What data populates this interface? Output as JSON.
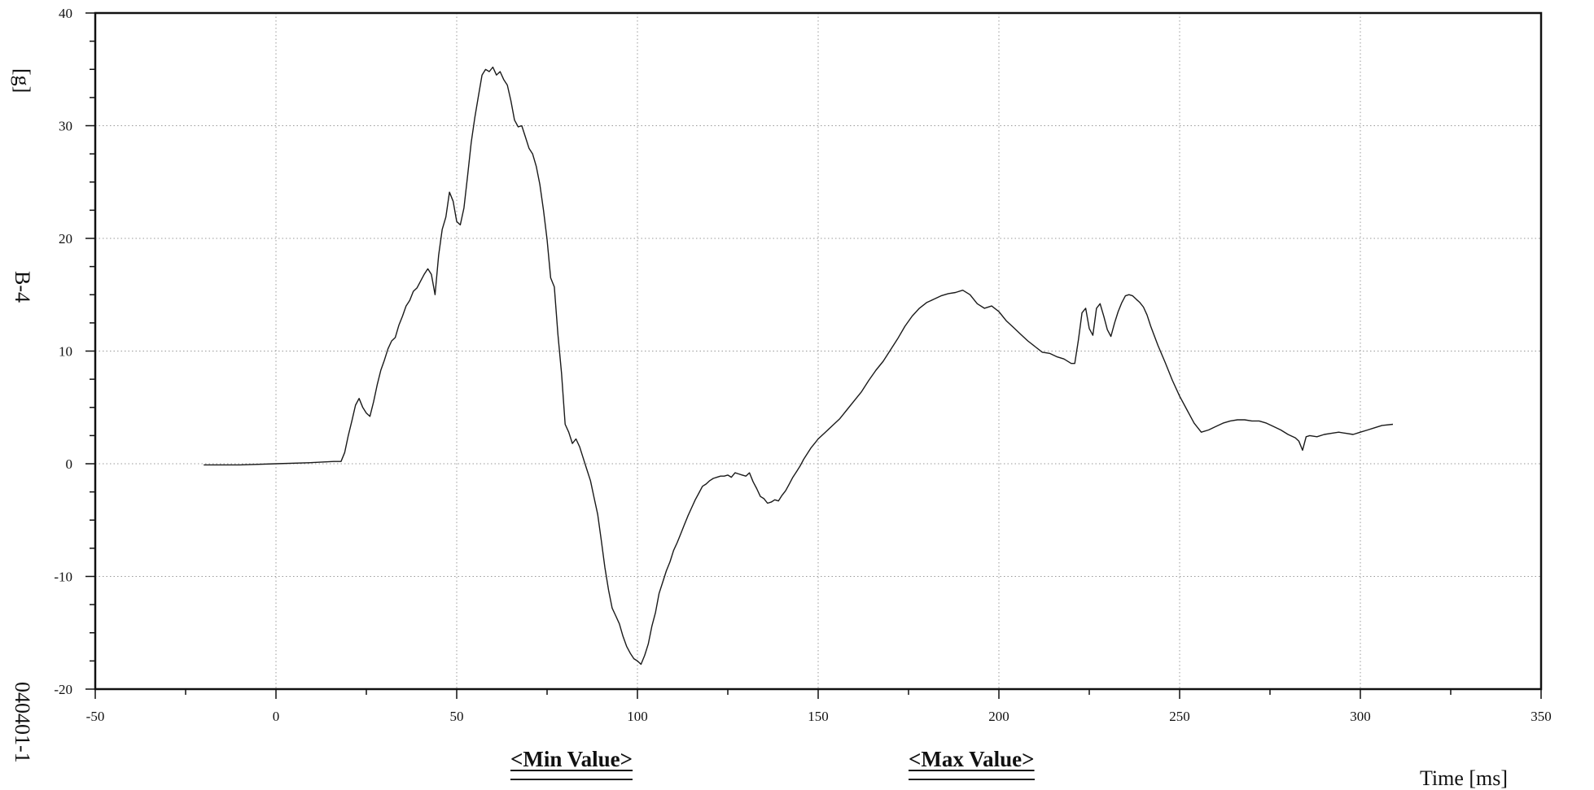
{
  "chart_data": {
    "type": "line",
    "title": "",
    "xlabel": "Time [ms]",
    "ylabel": "[g]",
    "xlim": [
      -50,
      350
    ],
    "ylim": [
      -20,
      40
    ],
    "x_ticks": [
      -50,
      0,
      50,
      100,
      150,
      200,
      250,
      300,
      350
    ],
    "y_ticks": [
      -20,
      -10,
      0,
      10,
      20,
      30,
      40
    ],
    "grid": true,
    "series": [
      {
        "name": "",
        "x": [
          -20,
          -10,
          0,
          10,
          16,
          18,
          19,
          20,
          21,
          22,
          23,
          24,
          25,
          26,
          27,
          28,
          29,
          30,
          31,
          32,
          33,
          34,
          35,
          36,
          37,
          38,
          39,
          40,
          41,
          42,
          43,
          44,
          45,
          46,
          47,
          48,
          49,
          50,
          51,
          52,
          53,
          54,
          55,
          56,
          57,
          58,
          59,
          60,
          61,
          62,
          63,
          64,
          65,
          66,
          67,
          68,
          69,
          70,
          71,
          72,
          73,
          74,
          75,
          76,
          77,
          78,
          79,
          80,
          81,
          82,
          83,
          84,
          85,
          86,
          87,
          88,
          89,
          90,
          91,
          92,
          93,
          94,
          95,
          96,
          97,
          98,
          99,
          100,
          101,
          102,
          103,
          104,
          105,
          106,
          107,
          108,
          109,
          110,
          111,
          112,
          113,
          114,
          115,
          116,
          117,
          118,
          119,
          120,
          121,
          122,
          123,
          124,
          125,
          126,
          127,
          128,
          129,
          130,
          131,
          132,
          133,
          134,
          135,
          136,
          137,
          138,
          139,
          140,
          141,
          142,
          143,
          144,
          145,
          146,
          147,
          148,
          149,
          150,
          152,
          154,
          156,
          158,
          160,
          162,
          164,
          166,
          168,
          170,
          172,
          174,
          176,
          178,
          180,
          182,
          184,
          186,
          188,
          190,
          192,
          194,
          196,
          198,
          200,
          202,
          204,
          206,
          208,
          210,
          212,
          214,
          216,
          218,
          220,
          221,
          222,
          223,
          224,
          225,
          226,
          227,
          228,
          229,
          230,
          231,
          232,
          233,
          234,
          235,
          236,
          237,
          238,
          239,
          240,
          241,
          242,
          244,
          246,
          248,
          250,
          252,
          254,
          256,
          258,
          260,
          262,
          264,
          266,
          268,
          270,
          272,
          274,
          276,
          278,
          280,
          282,
          283,
          284,
          285,
          286,
          288,
          290,
          292,
          294,
          296,
          298,
          300,
          302,
          304,
          306,
          309
        ],
        "values": [
          -0.1,
          -0.1,
          0,
          0.1,
          0.2,
          0.2,
          1.0,
          2.5,
          3.8,
          5.2,
          5.8,
          5.0,
          4.5,
          4.2,
          5.5,
          7.0,
          8.3,
          9.2,
          10.2,
          10.9,
          11.2,
          12.3,
          13.1,
          14.0,
          14.5,
          15.3,
          15.6,
          16.2,
          16.8,
          17.3,
          16.8,
          15.0,
          18.5,
          20.8,
          21.9,
          24.1,
          23.3,
          21.5,
          21.2,
          22.7,
          25.5,
          28.5,
          30.7,
          32.6,
          34.5,
          35.0,
          34.8,
          35.2,
          34.5,
          34.8,
          34.1,
          33.6,
          32.2,
          30.5,
          29.9,
          30.0,
          29.0,
          28.0,
          27.5,
          26.4,
          24.8,
          22.5,
          19.9,
          16.5,
          15.7,
          11.5,
          8.0,
          3.5,
          2.8,
          1.8,
          2.2,
          1.5,
          0.5,
          -0.5,
          -1.5,
          -3.0,
          -4.5,
          -6.8,
          -9.2,
          -11.2,
          -12.8,
          -13.5,
          -14.2,
          -15.3,
          -16.2,
          -16.8,
          -17.3,
          -17.5,
          -17.8,
          -17.0,
          -16.0,
          -14.4,
          -13.2,
          -11.5,
          -10.5,
          -9.5,
          -8.7,
          -7.7,
          -7.0,
          -6.2,
          -5.4,
          -4.6,
          -3.9,
          -3.2,
          -2.6,
          -2.0,
          -1.8,
          -1.5,
          -1.3,
          -1.2,
          -1.1,
          -1.1,
          -1.0,
          -1.2,
          -0.8,
          -0.9,
          -1.0,
          -1.1,
          -0.8,
          -1.6,
          -2.2,
          -2.9,
          -3.1,
          -3.5,
          -3.4,
          -3.2,
          -3.3,
          -2.8,
          -2.4,
          -1.8,
          -1.2,
          -0.7,
          -0.2,
          0.4,
          0.9,
          1.4,
          1.8,
          2.2,
          2.8,
          3.4,
          4.0,
          4.8,
          5.6,
          6.4,
          7.4,
          8.3,
          9.1,
          10.1,
          11.1,
          12.2,
          13.1,
          13.8,
          14.3,
          14.6,
          14.9,
          15.1,
          15.2,
          15.4,
          15.0,
          14.2,
          13.8,
          14.0,
          13.5,
          12.7,
          12.1,
          11.5,
          10.9,
          10.4,
          9.9,
          9.8,
          9.5,
          9.3,
          8.9,
          8.9,
          11.0,
          13.4,
          13.8,
          12.0,
          11.4,
          13.8,
          14.2,
          13.1,
          11.9,
          11.3,
          12.5,
          13.5,
          14.3,
          14.9,
          15.0,
          14.9,
          14.6,
          14.3,
          13.9,
          13.2,
          12.2,
          10.5,
          9.0,
          7.4,
          6.0,
          4.8,
          3.6,
          2.8,
          3.0,
          3.3,
          3.6,
          3.8,
          3.9,
          3.9,
          3.8,
          3.8,
          3.6,
          3.3,
          3.0,
          2.6,
          2.3,
          2.0,
          1.2,
          2.4,
          2.5,
          2.4,
          2.6,
          2.7,
          2.8,
          2.7,
          2.6,
          2.8,
          3.0,
          3.2,
          3.4,
          3.5
        ]
      }
    ],
    "annotations": {
      "min_value": "<Min Value>",
      "max_value": "<Max Value>"
    },
    "side_labels": {
      "channel": "B-4",
      "test_id": "040401-1"
    },
    "line_color": "#1a1a1a",
    "grid_color": "#9a9a9a"
  }
}
